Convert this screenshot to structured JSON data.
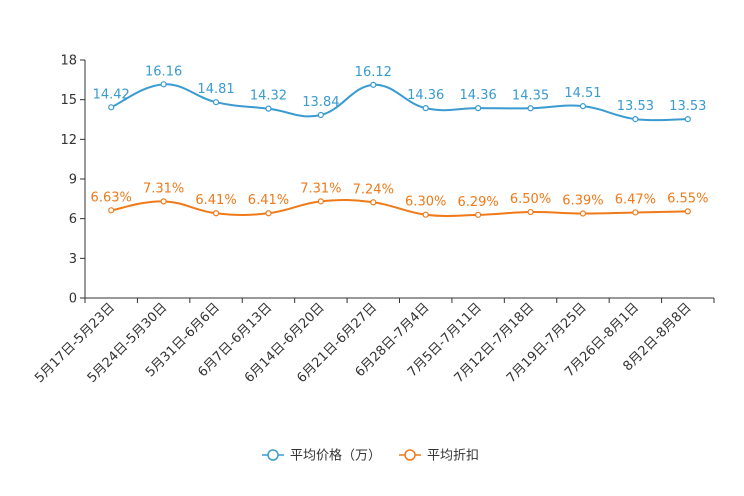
{
  "chart_data": {
    "type": "line",
    "title": "",
    "xlabel": "",
    "ylabel": "",
    "ylim": [
      0,
      18
    ],
    "yticks": [
      0,
      3,
      6,
      9,
      12,
      15,
      18
    ],
    "grid": false,
    "legend_position": "bottom-center",
    "categories": [
      "5月17日-5月23日",
      "5月24日-5月30日",
      "5月31日-6月6日",
      "6月7日-6月13日",
      "6月14日-6月20日",
      "6月21日-6月27日",
      "6月28日-7月4日",
      "7月5日-7月11日",
      "7月12日-7月18日",
      "7月19日-7月25日",
      "7月26日-8月1日",
      "8月2日-8月8日"
    ],
    "series": [
      {
        "name": "平均价格（万）",
        "color": "#3a9bd0",
        "values": [
          14.42,
          16.16,
          14.81,
          14.32,
          13.84,
          16.12,
          14.36,
          14.36,
          14.35,
          14.51,
          13.53,
          13.53
        ],
        "labels": [
          "14.42",
          "16.16",
          "14.81",
          "14.32",
          "13.84",
          "16.12",
          "14.36",
          "14.36",
          "14.35",
          "14.51",
          "13.53",
          "13.53"
        ]
      },
      {
        "name": "平均折扣",
        "color": "#f07a1a",
        "values": [
          6.63,
          7.31,
          6.41,
          6.41,
          7.31,
          7.24,
          6.3,
          6.29,
          6.5,
          6.39,
          6.47,
          6.55
        ],
        "labels": [
          "6.63%",
          "7.31%",
          "6.41%",
          "6.41%",
          "7.31%",
          "7.24%",
          "6.30%",
          "6.29%",
          "6.50%",
          "6.39%",
          "6.47%",
          "6.55%"
        ]
      }
    ]
  }
}
